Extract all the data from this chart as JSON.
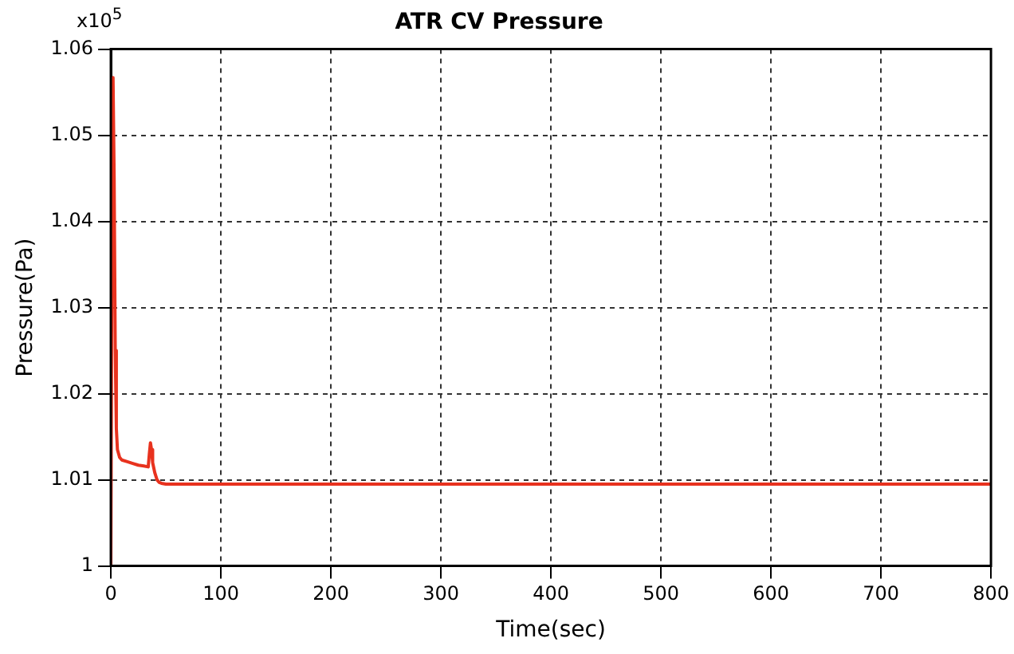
{
  "chart_data": {
    "type": "line",
    "title": "ATR CV Pressure",
    "xlabel": "Time(sec)",
    "ylabel": "Pressure(Pa)",
    "annotations": [
      "x10$^{5}$"
    ],
    "series": [
      {
        "color": "#e8321e",
        "x": [
          0,
          1,
          2,
          3,
          4,
          5,
          6,
          8,
          10,
          15,
          20,
          25,
          30,
          34,
          35,
          36,
          37,
          38,
          40,
          42,
          44,
          46,
          50,
          60,
          100,
          200,
          400,
          600,
          800
        ],
        "values": [
          1.0,
          1.04,
          1.0567,
          1.045,
          1.025,
          1.016,
          1.0135,
          1.0126,
          1.0123,
          1.0121,
          1.0119,
          1.0117,
          1.0116,
          1.0115,
          1.013,
          1.0143,
          1.0135,
          1.012,
          1.0108,
          1.01,
          1.0097,
          1.0096,
          1.0095,
          1.0095,
          1.0095,
          1.0095,
          1.0095,
          1.0095,
          1.0095
        ]
      }
    ],
    "xlim": [
      0,
      800
    ],
    "xticks": [
      0,
      100,
      200,
      300,
      400,
      500,
      600,
      700,
      800
    ],
    "ylim": [
      1,
      1.06
    ],
    "yticks": [
      1,
      1.01,
      1.02,
      1.03,
      1.04,
      1.05,
      1.06
    ],
    "grid": true,
    "legend": false,
    "marker": "none",
    "line_style": "solid"
  }
}
